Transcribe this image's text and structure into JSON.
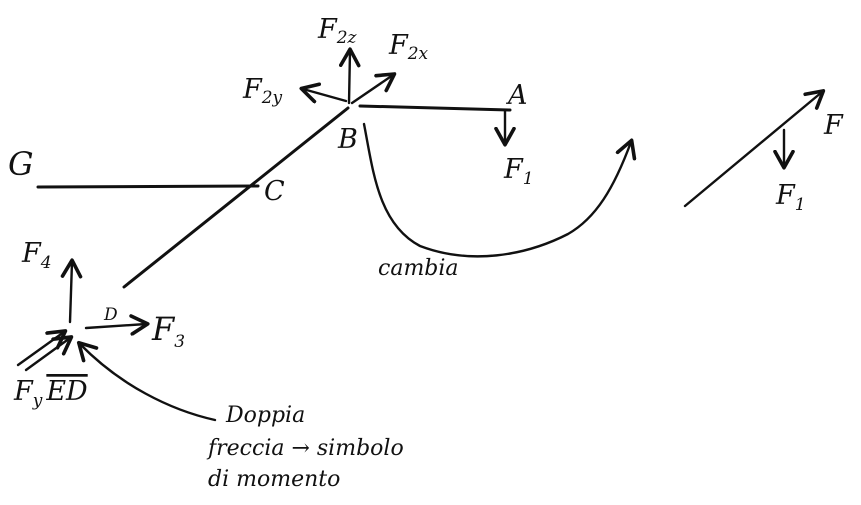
{
  "labels": {
    "G": "G",
    "C": "C",
    "B": "B",
    "A": "A",
    "D": "D",
    "F": "F",
    "F1_main": {
      "base": "F",
      "sub": "1"
    },
    "F1_side": {
      "base": "F",
      "sub": "1"
    },
    "F2z": {
      "base": "F",
      "sub": "2z"
    },
    "F2x": {
      "base": "F",
      "sub": "2x"
    },
    "F2y": {
      "base": "F",
      "sub": "2y"
    },
    "F4": {
      "base": "F",
      "sub": "4"
    },
    "F3": {
      "base": "F",
      "sub": "3"
    },
    "Fy_ED": {
      "base": "F",
      "sub": "y",
      "overline": "ED"
    }
  },
  "annotations": {
    "cambia": "cambia",
    "note_line1": "Doppia",
    "note_line2": "freccia → simbolo",
    "note_line3": "di momento"
  },
  "colors": {
    "ink": "#111111",
    "paper": "#ffffff"
  }
}
